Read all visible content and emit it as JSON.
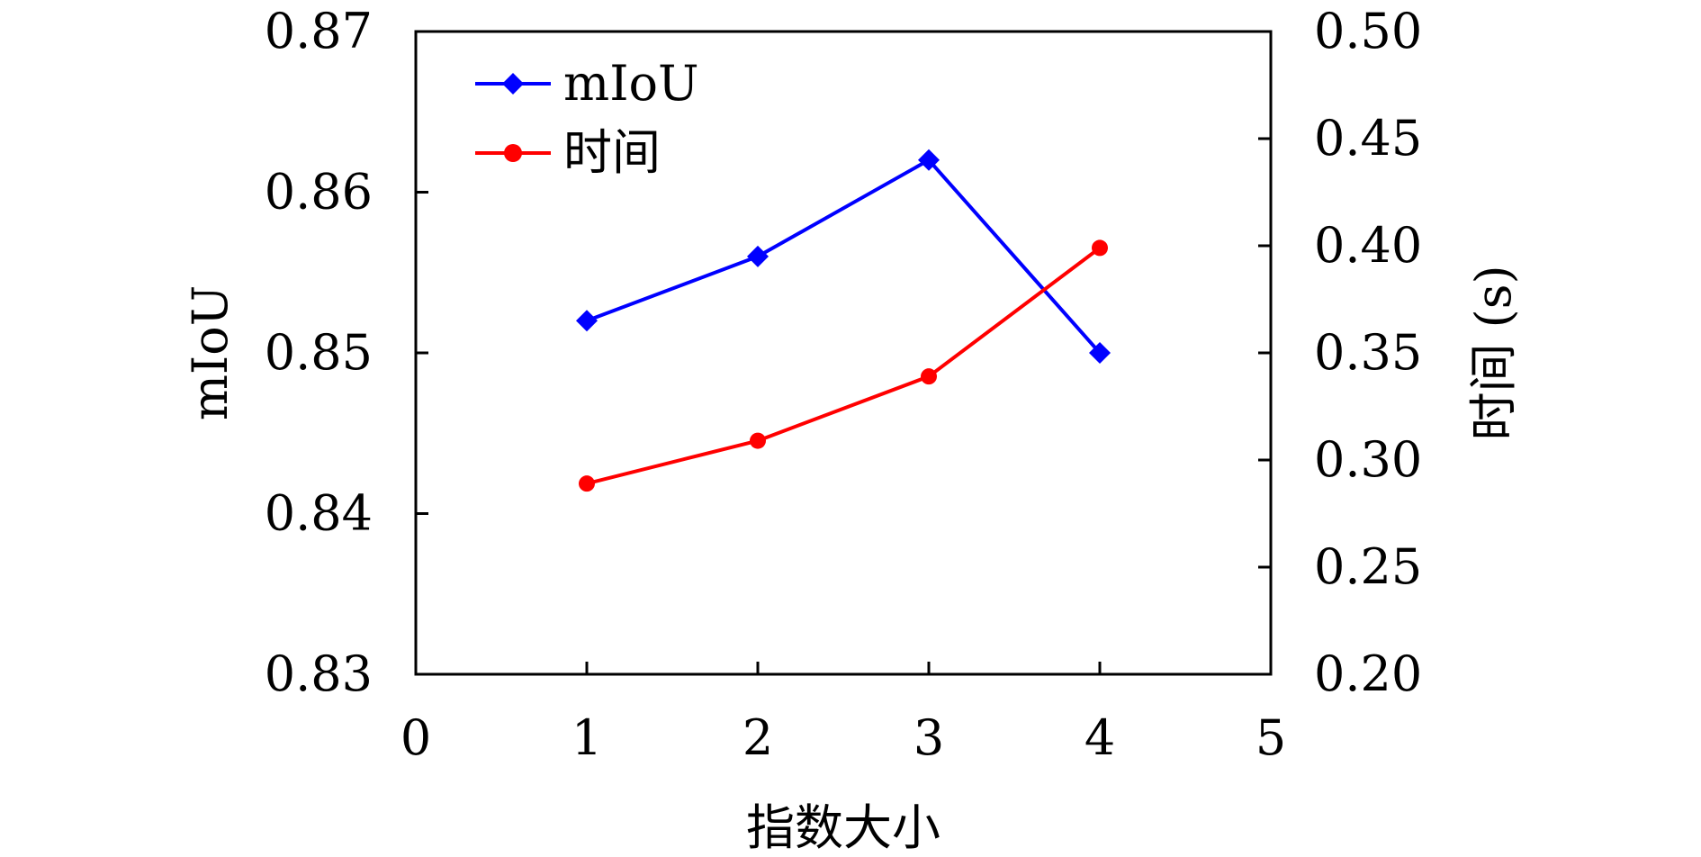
{
  "chart_data": {
    "type": "line",
    "x": [
      1,
      2,
      3,
      4
    ],
    "xlabel": "指数大小",
    "xlim": [
      0,
      5
    ],
    "xticks": [
      "0",
      "1",
      "2",
      "3",
      "4",
      "5"
    ],
    "ylabel_left": "mIoU",
    "ylim_left": [
      0.83,
      0.87
    ],
    "yticks_left": [
      "0.83",
      "0.84",
      "0.85",
      "0.86",
      "0.87"
    ],
    "ylabel_right": "时间 (s)",
    "ylim_right": [
      0.2,
      0.5
    ],
    "yticks_right": [
      "0.20",
      "0.25",
      "0.30",
      "0.35",
      "0.40",
      "0.45",
      "0.50"
    ],
    "grid": false,
    "legend_position": "top-left",
    "series": [
      {
        "name": "mIoU",
        "axis": "left",
        "color": "#0000ff",
        "marker": "diamond",
        "values": [
          0.852,
          0.856,
          0.862,
          0.85
        ]
      },
      {
        "name": "时间",
        "axis": "right",
        "color": "#ff0000",
        "marker": "circle",
        "values": [
          0.289,
          0.309,
          0.339,
          0.399
        ]
      }
    ]
  }
}
